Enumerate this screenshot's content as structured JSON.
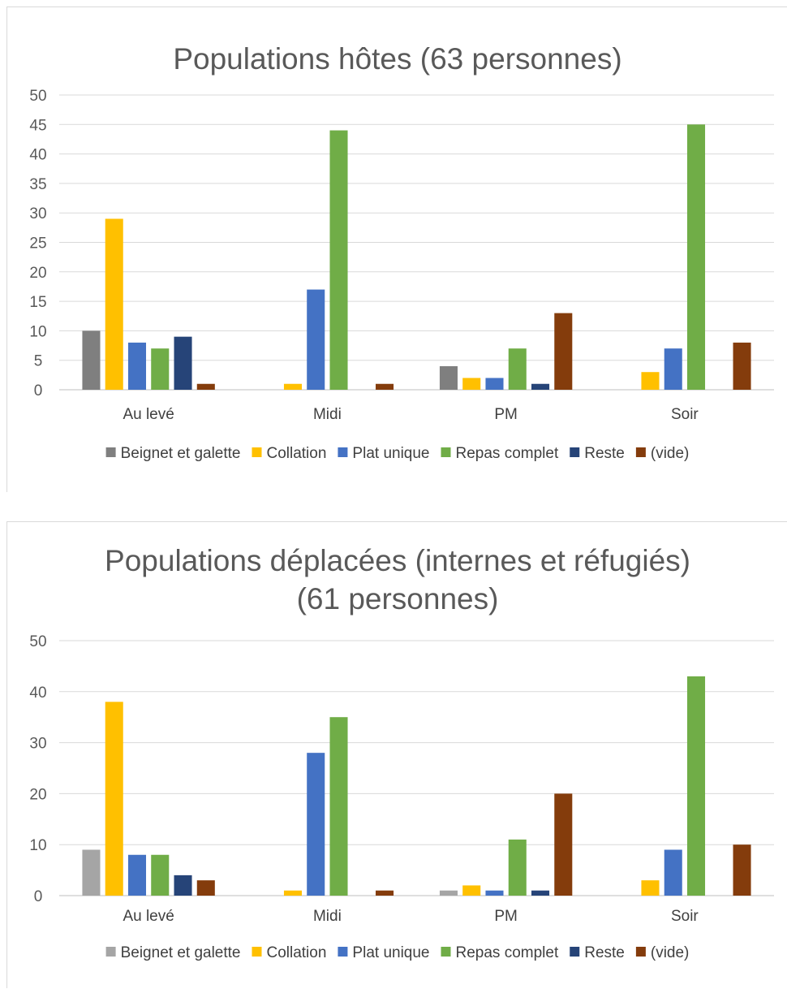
{
  "colors": {
    "grid": "#d9d9d9",
    "axis": "#bfbfbf"
  },
  "chart_data": [
    {
      "type": "bar",
      "title": "Populations hôtes (63 personnes)",
      "categories": [
        "Au levé",
        "Midi",
        "PM",
        "Soir"
      ],
      "ylim": [
        0,
        50
      ],
      "yticks": [
        0,
        5,
        10,
        15,
        20,
        25,
        30,
        35,
        40,
        45,
        50
      ],
      "grid": true,
      "legend": "bottom",
      "series": [
        {
          "name": "Beignet et galette",
          "color": "#7f7f7f",
          "values": [
            10,
            0,
            4,
            0
          ]
        },
        {
          "name": "Collation",
          "color": "#ffc000",
          "values": [
            29,
            1,
            2,
            3
          ]
        },
        {
          "name": "Plat unique",
          "color": "#4472c4",
          "values": [
            8,
            17,
            2,
            7
          ]
        },
        {
          "name": "Repas complet",
          "color": "#70ad47",
          "values": [
            7,
            44,
            7,
            45
          ]
        },
        {
          "name": "Reste",
          "color": "#264478",
          "values": [
            9,
            0,
            1,
            0
          ]
        },
        {
          "name": "(vide)",
          "color": "#843c0c",
          "values": [
            1,
            1,
            13,
            8
          ]
        }
      ]
    },
    {
      "type": "bar",
      "title": [
        "Populations déplacées (internes et réfugiés)",
        "(61 personnes)"
      ],
      "categories": [
        "Au levé",
        "Midi",
        "PM",
        "Soir"
      ],
      "ylim": [
        0,
        50
      ],
      "yticks": [
        0,
        10,
        20,
        30,
        40,
        50
      ],
      "grid": true,
      "legend": "bottom",
      "series": [
        {
          "name": "Beignet et galette",
          "color": "#a5a5a5",
          "values": [
            9,
            0,
            1,
            0
          ]
        },
        {
          "name": "Collation",
          "color": "#ffc000",
          "values": [
            38,
            1,
            2,
            3
          ]
        },
        {
          "name": "Plat unique",
          "color": "#4472c4",
          "values": [
            8,
            28,
            1,
            9
          ]
        },
        {
          "name": "Repas complet",
          "color": "#70ad47",
          "values": [
            8,
            35,
            11,
            43
          ]
        },
        {
          "name": "Reste",
          "color": "#264478",
          "values": [
            4,
            0,
            1,
            0
          ]
        },
        {
          "name": "(vide)",
          "color": "#843c0c",
          "values": [
            3,
            1,
            20,
            10
          ]
        }
      ]
    }
  ]
}
